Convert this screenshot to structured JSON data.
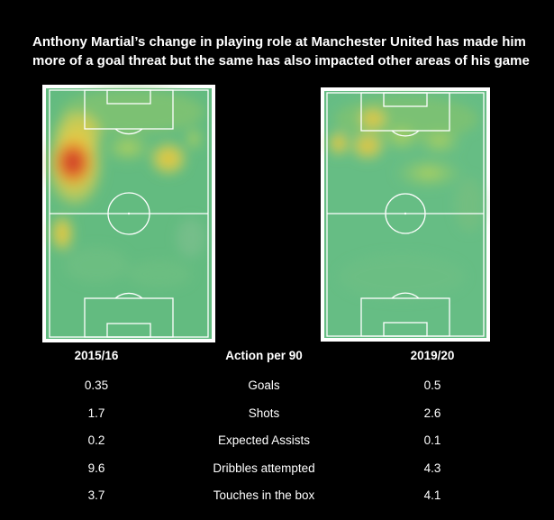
{
  "title": "Anthony Martial’s change in playing role at Manchester United has made him more of a goal threat but the same has also impacted other areas of his game",
  "columns": [
    "2015/16",
    "Action per 90",
    "2019/20"
  ],
  "rows": [
    {
      "season1": "0.35",
      "metric": "Goals",
      "season2": "0.5"
    },
    {
      "season1": "1.7",
      "metric": "Shots",
      "season2": "2.6"
    },
    {
      "season1": "0.2",
      "metric": "Expected Assists",
      "season2": "0.1"
    },
    {
      "season1": "9.6",
      "metric": "Dribbles attempted",
      "season2": "4.3"
    },
    {
      "season1": "3.7",
      "metric": "Touches in the box",
      "season2": "4.1"
    }
  ],
  "chart_data": {
    "type": "table",
    "columns": [
      "2015/16",
      "Action per 90",
      "2019/20"
    ],
    "rows": [
      [
        "0.35",
        "Goals",
        "0.5"
      ],
      [
        "1.7",
        "Shots",
        "2.6"
      ],
      [
        "0.2",
        "Expected Assists",
        "0.1"
      ],
      [
        "9.6",
        "Dribbles attempted",
        "4.3"
      ],
      [
        "3.7",
        "Touches in the box",
        "4.1"
      ]
    ]
  },
  "colors": {
    "background": "#000000",
    "pitch_base": "#5fb87e",
    "pitch_lines": "#ffffff",
    "heat_low": "#6cc08a",
    "heat_mid": "#f2c02f",
    "heat_high": "#d0402a"
  }
}
